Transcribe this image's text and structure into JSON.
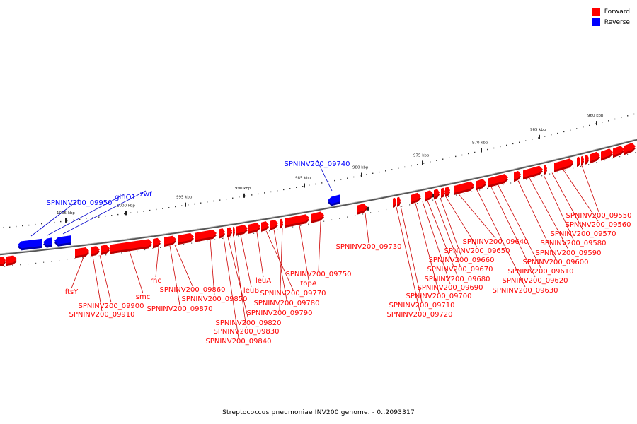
{
  "colors": {
    "forward": "#ff0000",
    "reverse": "#0000ff",
    "line": "#cc0000",
    "revline": "#0000cc",
    "axis": "#777777"
  },
  "legend": [
    {
      "label": "Forward",
      "color": "#ff0000"
    },
    {
      "label": "Reverse",
      "color": "#0000ff"
    }
  ],
  "caption": "Streptococcus pneumoniae INV200 genome. - 0..2093317",
  "ruler_labels": [
    "960 kbp",
    "965 kbp",
    "970 kbp",
    "975 kbp",
    "980 kbp",
    "985 kbp",
    "990 kbp",
    "995 kbp",
    "1000 kbp",
    "1005 kbp"
  ],
  "gene_labels": {
    "reverse": [
      "SPNINV200_09950",
      "glnQ1",
      "zwf",
      "SPNINV200_09740"
    ],
    "forward": [
      "ftsY",
      "SPNINV200_09900",
      "SPNINV200_09910",
      "smc",
      "rnc",
      "SPNINV200_09860",
      "SPNINV200_09870",
      "SPNINV200_09850",
      "SPNINV200_09820",
      "SPNINV200_09830",
      "SPNINV200_09840",
      "leuB",
      "leuA",
      "SPNINV200_09770",
      "SPNINV200_09780",
      "SPNINV200_09790",
      "topA",
      "SPNINV200_09750",
      "SPNINV200_09730",
      "SPNINV200_09720",
      "SPNINV200_09710",
      "SPNINV200_09700",
      "SPNINV200_09690",
      "SPNINV200_09680",
      "SPNINV200_09670",
      "SPNINV200_09660",
      "SPNINV200_09650",
      "SPNINV200_09640",
      "SPNINV200_09630",
      "SPNINV200_09620",
      "SPNINV200_09610",
      "SPNINV200_09600",
      "SPNINV200_09590",
      "SPNINV200_09580",
      "SPNINV200_09570",
      "SPNINV200_09560",
      "SPNINV200_09550"
    ]
  }
}
